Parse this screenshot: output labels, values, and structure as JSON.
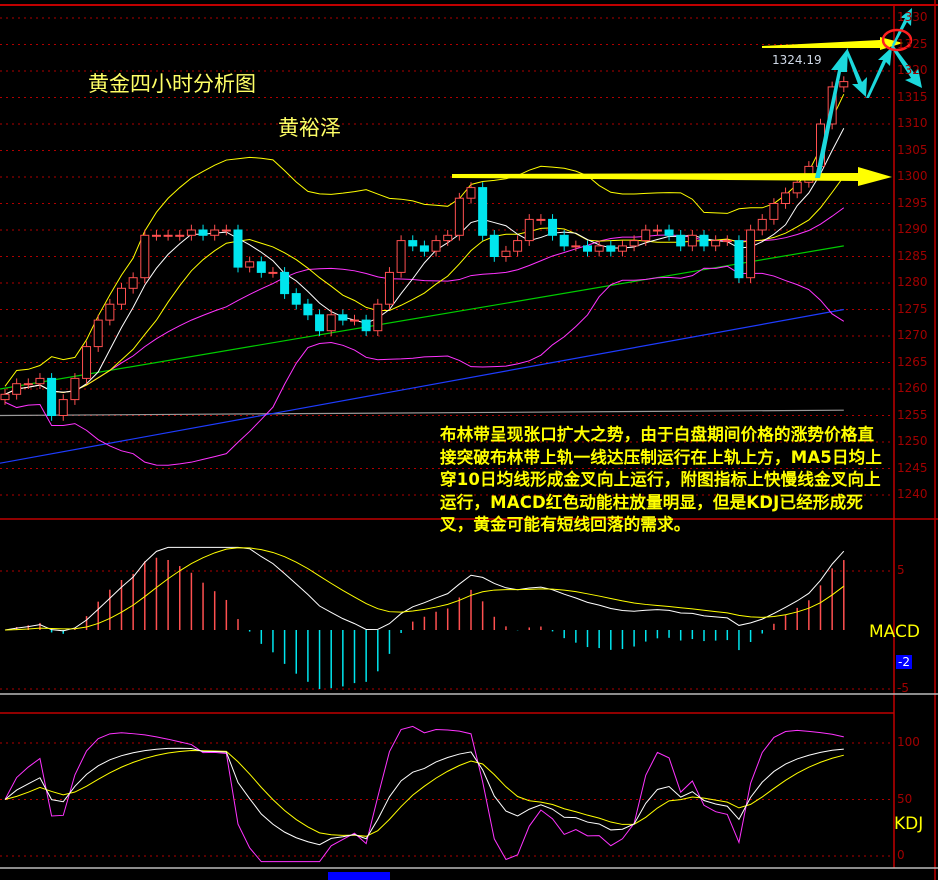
{
  "header": {
    "title": "黄金四小时分析图",
    "author": "黄裕泽"
  },
  "annotation": {
    "text": "布林带呈现张口扩大之势，由于白盘期间价格的涨势价格直接突破布林带上轨一线达压制运行在上轨上方，MA5日均上穿10日均线形成金叉向上运行，附图指标上快慢线金叉向上运行，MACD红色动能柱放量明显，但是KDJ已经形成死叉，黄金可能有短线回落的需求。",
    "price_label": "1324.19"
  },
  "colors": {
    "up": "#ff5050",
    "down": "#00e5ee",
    "ma5": "#ffffff",
    "ma10": "#ffff00",
    "boll_upper": "#ffff00",
    "boll_mid": "#ff33ff",
    "boll_lower": "#ff33ff",
    "ma_green": "#00cc00",
    "ma_blue": "#1e3cff",
    "grid": "#b00000",
    "arrow_yellow": "#ffff00",
    "arrow_cyan": "#1cd8dc"
  },
  "chart_data": [
    {
      "type": "candlestick",
      "title": "",
      "ylim": [
        1238,
        1332
      ],
      "yticks": [
        1240,
        1245,
        1250,
        1255,
        1260,
        1265,
        1270,
        1275,
        1280,
        1285,
        1290,
        1295,
        1300,
        1305,
        1310,
        1315,
        1320,
        1325,
        1330
      ],
      "closes": [
        1259,
        1261,
        1261,
        1262,
        1255,
        1258,
        1262,
        1268,
        1273,
        1276,
        1279,
        1281,
        1289,
        1289,
        1289,
        1289,
        1290,
        1289,
        1290,
        1290,
        1283,
        1284,
        1282,
        1282,
        1278,
        1276,
        1274,
        1271,
        1274,
        1273,
        1273,
        1271,
        1276,
        1282,
        1288,
        1287,
        1286,
        1288,
        1289,
        1296,
        1298,
        1289,
        1285,
        1286,
        1288,
        1292,
        1292,
        1289,
        1287,
        1287,
        1286,
        1287,
        1286,
        1287,
        1288,
        1290,
        1290,
        1289,
        1287,
        1289,
        1287,
        1288,
        1288,
        1281,
        1290,
        1292,
        1295,
        1297,
        1299,
        1302,
        1310,
        1317,
        1318
      ],
      "ma_green": [
        1260,
        1287
      ],
      "ma_blue": [
        1246,
        1275
      ],
      "ma_gray": [
        1255,
        1256
      ],
      "levels": [
        {
          "price": 1300,
          "kind": "yellow-arrow"
        },
        {
          "price": 1325,
          "kind": "yellow-arrow"
        }
      ]
    },
    {
      "type": "macd",
      "label": "MACD",
      "yticks": [
        5,
        -5
      ],
      "ylim": [
        -5,
        7
      ],
      "current": "-2"
    },
    {
      "type": "kdj",
      "label": "KDJ",
      "yticks": [
        100,
        50,
        0
      ],
      "ylim": [
        -10,
        120
      ]
    }
  ]
}
